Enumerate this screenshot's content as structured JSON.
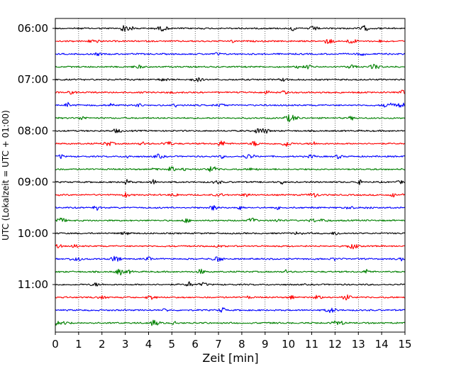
{
  "chart_data": {
    "type": "line",
    "chart_kind": "helicorder",
    "xlabel": "Zeit  [min]",
    "ylabel": "UTC (Lokalzeit = UTC + 01:00)",
    "xlim": [
      0,
      15
    ],
    "x_ticks": [
      0,
      1,
      2,
      3,
      4,
      5,
      6,
      7,
      8,
      9,
      10,
      11,
      12,
      13,
      14,
      15
    ],
    "x_gridlines": "dotted vertical at each minute",
    "trace_interval_min": 15,
    "trace_colors_cycle": [
      "#000000",
      "#ff0000",
      "#0000ff",
      "#008000"
    ],
    "hour_ticks": [
      "06:00",
      "07:00",
      "08:00",
      "09:00",
      "10:00",
      "11:00"
    ],
    "traces": [
      {
        "start": "06:00",
        "color": "#000000"
      },
      {
        "start": "06:15",
        "color": "#ff0000"
      },
      {
        "start": "06:30",
        "color": "#0000ff"
      },
      {
        "start": "06:45",
        "color": "#008000"
      },
      {
        "start": "07:00",
        "color": "#000000"
      },
      {
        "start": "07:15",
        "color": "#ff0000"
      },
      {
        "start": "07:30",
        "color": "#0000ff"
      },
      {
        "start": "07:45",
        "color": "#008000"
      },
      {
        "start": "08:00",
        "color": "#000000"
      },
      {
        "start": "08:15",
        "color": "#ff0000"
      },
      {
        "start": "08:30",
        "color": "#0000ff"
      },
      {
        "start": "08:45",
        "color": "#008000"
      },
      {
        "start": "09:00",
        "color": "#000000"
      },
      {
        "start": "09:15",
        "color": "#ff0000"
      },
      {
        "start": "09:30",
        "color": "#0000ff"
      },
      {
        "start": "09:45",
        "color": "#008000"
      },
      {
        "start": "10:00",
        "color": "#000000"
      },
      {
        "start": "10:15",
        "color": "#ff0000"
      },
      {
        "start": "10:30",
        "color": "#0000ff"
      },
      {
        "start": "10:45",
        "color": "#008000"
      },
      {
        "start": "11:00",
        "color": "#000000"
      },
      {
        "start": "11:15",
        "color": "#ff0000"
      },
      {
        "start": "11:30",
        "color": "#0000ff"
      },
      {
        "start": "11:45",
        "color": "#008000"
      }
    ]
  }
}
